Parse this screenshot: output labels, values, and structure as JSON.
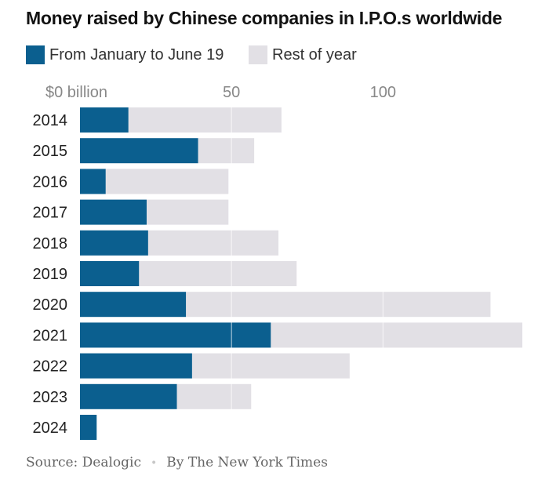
{
  "chart_data": {
    "type": "bar",
    "stacked": true,
    "orientation": "horizontal",
    "title": "Money raised by Chinese companies in I.P.O.s worldwide",
    "x_unit_label": "$0 billion",
    "x_ticks": [
      {
        "value": 0,
        "label": "$0 billion"
      },
      {
        "value": 50,
        "label": "50"
      },
      {
        "value": 100,
        "label": "100"
      }
    ],
    "xlim": [
      0,
      146
    ],
    "grid": true,
    "legend_placement": "top-left",
    "categories": [
      "2014",
      "2015",
      "2016",
      "2017",
      "2018",
      "2019",
      "2020",
      "2021",
      "2022",
      "2023",
      "2024"
    ],
    "series": [
      {
        "name": "From January to June 19",
        "color": "#0b5f8f",
        "values": [
          16,
          39,
          8.5,
          22,
          22.5,
          19.5,
          35,
          63,
          37,
          32,
          5.5
        ]
      },
      {
        "name": "Rest of year",
        "color": "#e2e0e5",
        "values": [
          50.5,
          18.5,
          40.5,
          27,
          43,
          52,
          100.5,
          83,
          52,
          24.5,
          0
        ]
      }
    ]
  },
  "source": {
    "text": "Source: Dealogic",
    "separator": "•",
    "credit": "By The New York Times"
  }
}
